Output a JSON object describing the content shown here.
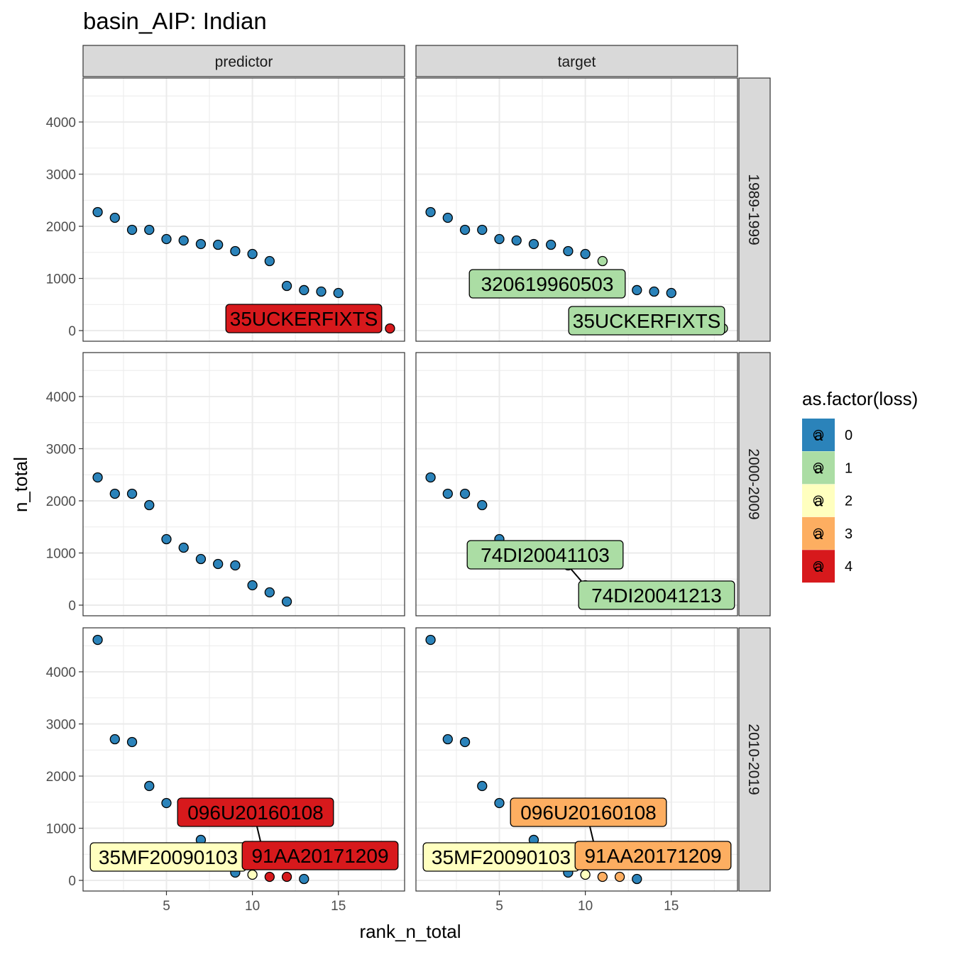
{
  "chart_data": {
    "type": "scatter",
    "title": "basin_AIP: Indian",
    "xlabel": "rank_n_total",
    "ylabel": "n_total",
    "xlim": [
      0.15,
      18.85
    ],
    "ylim": [
      -204,
      4843
    ],
    "x_ticks": [
      5,
      10,
      15
    ],
    "y_ticks": [
      0,
      1000,
      2000,
      3000,
      4000
    ],
    "grid": true,
    "columns": [
      "predictor",
      "target"
    ],
    "rows": [
      "1989-1999",
      "2000-2009",
      "2010-2019"
    ],
    "legend": {
      "title": "as.factor(loss)",
      "position": "right",
      "keys": [
        "0",
        "1",
        "2",
        "3",
        "4"
      ],
      "key_glyph": "a",
      "colors": [
        "#2B83BA",
        "#ABDDA4",
        "#FFFFBF",
        "#FDAE61",
        "#D7191C"
      ]
    },
    "panels": [
      {
        "row": "1989-1999",
        "column": "predictor",
        "x": [
          1,
          2,
          3,
          4,
          5,
          6,
          7,
          8,
          9,
          10,
          11,
          12,
          13,
          14,
          15,
          16,
          17,
          18
        ],
        "y": [
          2272,
          2163,
          1932,
          1932,
          1755,
          1728,
          1660,
          1646,
          1524,
          1469,
          1333,
          857,
          776,
          748,
          721,
          259,
          150,
          41
        ],
        "loss": [
          0,
          0,
          0,
          0,
          0,
          0,
          0,
          0,
          0,
          0,
          0,
          0,
          0,
          0,
          0,
          0,
          0,
          4
        ],
        "labels": [
          {
            "text": "35UCKERFIXTS",
            "x": 18,
            "loss": 4
          }
        ]
      },
      {
        "row": "1989-1999",
        "column": "target",
        "x": [
          1,
          2,
          3,
          4,
          5,
          6,
          7,
          8,
          9,
          10,
          11,
          12,
          13,
          14,
          15,
          16,
          17,
          18
        ],
        "y": [
          2272,
          2163,
          1932,
          1932,
          1755,
          1728,
          1660,
          1646,
          1524,
          1469,
          1333,
          857,
          776,
          748,
          721,
          259,
          150,
          41
        ],
        "loss": [
          0,
          0,
          0,
          0,
          0,
          0,
          0,
          0,
          0,
          0,
          1,
          0,
          0,
          0,
          0,
          0,
          0,
          1
        ],
        "labels": [
          {
            "text": "320619960503",
            "x": 11,
            "loss": 1
          },
          {
            "text": "35UCKERFIXTS",
            "x": 18,
            "loss": 1
          }
        ]
      },
      {
        "row": "2000-2009",
        "column": "predictor",
        "x": [
          1,
          2,
          3,
          4,
          5,
          6,
          7,
          8,
          9,
          10,
          11,
          12
        ],
        "y": [
          2449,
          2136,
          2136,
          1918,
          1265,
          1102,
          884,
          789,
          762,
          381,
          245,
          68
        ],
        "loss": [
          0,
          0,
          0,
          0,
          0,
          0,
          0,
          0,
          0,
          0,
          0,
          0
        ],
        "labels": []
      },
      {
        "row": "2000-2009",
        "column": "target",
        "x": [
          1,
          2,
          3,
          4,
          5,
          6,
          7,
          8,
          9,
          10,
          11,
          12
        ],
        "y": [
          2449,
          2136,
          2136,
          1918,
          1265,
          1102,
          884,
          789,
          762,
          381,
          245,
          68
        ],
        "loss": [
          0,
          0,
          0,
          0,
          0,
          0,
          0,
          0,
          0,
          1,
          1,
          0
        ],
        "labels": [
          {
            "text": "74DI20041103",
            "x": 10,
            "loss": 1
          },
          {
            "text": "74DI20041213",
            "x": 11,
            "loss": 1
          }
        ]
      },
      {
        "row": "2010-2019",
        "column": "predictor",
        "x": [
          1,
          2,
          3,
          4,
          5,
          6,
          7,
          8,
          9,
          10,
          11,
          12,
          13
        ],
        "y": [
          4612,
          2707,
          2653,
          1810,
          1483,
          1197,
          776,
          531,
          150,
          109,
          68,
          68,
          27
        ],
        "loss": [
          0,
          0,
          0,
          0,
          0,
          0,
          0,
          0,
          0,
          2,
          4,
          4,
          0
        ],
        "labels": [
          {
            "text": "096U20160108",
            "x": 11,
            "loss": 4
          },
          {
            "text": "35MF20090103",
            "x": 10,
            "loss": 2
          },
          {
            "text": "91AA20171209",
            "x": 12,
            "loss": 4
          }
        ]
      },
      {
        "row": "2010-2019",
        "column": "target",
        "x": [
          1,
          2,
          3,
          4,
          5,
          6,
          7,
          8,
          9,
          10,
          11,
          12,
          13
        ],
        "y": [
          4612,
          2707,
          2653,
          1810,
          1483,
          1197,
          776,
          531,
          150,
          109,
          68,
          68,
          27
        ],
        "loss": [
          0,
          0,
          0,
          0,
          0,
          0,
          0,
          0,
          0,
          2,
          3,
          3,
          0
        ],
        "labels": [
          {
            "text": "096U20160108",
            "x": 11,
            "loss": 3
          },
          {
            "text": "35MF20090103",
            "x": 10,
            "loss": 2
          },
          {
            "text": "91AA20171209",
            "x": 12,
            "loss": 3
          }
        ]
      }
    ]
  }
}
